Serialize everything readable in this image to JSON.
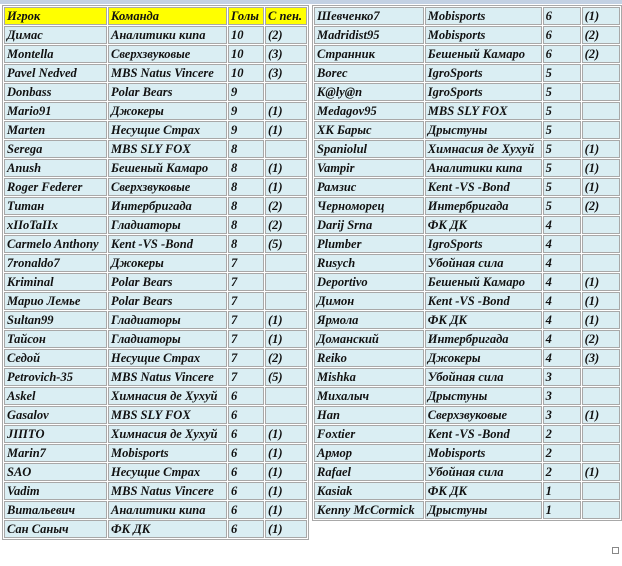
{
  "colors": {
    "header_bg": "#ffff00",
    "cell_bg": "#daeef3",
    "border": "#a8a8a8"
  },
  "left_table": {
    "headers": [
      "Игрок",
      "Команда",
      "Голы",
      "С пен."
    ],
    "rows": [
      [
        "Димас",
        "Аналитики кипа",
        "10",
        "(2)"
      ],
      [
        "Montella",
        "Сверхзвуковые",
        "10",
        "(3)"
      ],
      [
        "Pavel Nedved",
        "MBS Natus Vincere",
        "10",
        "(3)"
      ],
      [
        "Donbass",
        "Polar Bears",
        "9",
        ""
      ],
      [
        "Mario91",
        "Джокеры",
        "9",
        "(1)"
      ],
      [
        "Marten",
        "Несущие Страх",
        "9",
        "(1)"
      ],
      [
        "Serega",
        "MBS SLY FOX",
        "8",
        ""
      ],
      [
        "Anush",
        "Бешеный Камаро",
        "8",
        "(1)"
      ],
      [
        "Roger Federer",
        "Сверхзвуковые",
        "8",
        "(1)"
      ],
      [
        "Титан",
        "Интербригада",
        "8",
        "(2)"
      ],
      [
        "xIIoTaIIx",
        "Гладиаторы",
        "8",
        "(2)"
      ],
      [
        "Carmelo Anthony",
        "Kent -VS -Bond",
        "8",
        "(5)"
      ],
      [
        "7ronaldo7",
        "Джокеры",
        "7",
        ""
      ],
      [
        "Kriminal",
        "Polar Bears",
        "7",
        ""
      ],
      [
        "Марио Лемье",
        "Polar Bears",
        "7",
        ""
      ],
      [
        "Sultan99",
        "Гладиаторы",
        "7",
        "(1)"
      ],
      [
        "Тайсон",
        "Гладиаторы",
        "7",
        "(1)"
      ],
      [
        "Седой",
        "Несущие Страх",
        "7",
        "(2)"
      ],
      [
        "Petrovich-35",
        "MBS Natus Vincere",
        "7",
        "(5)"
      ],
      [
        "Askel",
        "Химнасия де Хухуй",
        "6",
        ""
      ],
      [
        "Gasalov",
        "MBS SLY FOX",
        "6",
        ""
      ],
      [
        "JIПТО",
        "Химнасия де Хухуй",
        "6",
        "(1)"
      ],
      [
        "Marin7",
        "Mobisports",
        "6",
        "(1)"
      ],
      [
        "SAO",
        "Несущие Страх",
        "6",
        "(1)"
      ],
      [
        "Vadim",
        "MBS Natus Vincere",
        "6",
        "(1)"
      ],
      [
        "Витальевич",
        "Аналитики кипа",
        "6",
        "(1)"
      ],
      [
        "Сан Саныч",
        "ФК ДК",
        "6",
        "(1)"
      ]
    ]
  },
  "right_table": {
    "rows": [
      [
        "Шевченко7",
        "Mobisports",
        "6",
        "(1)"
      ],
      [
        "Madridist95",
        "Mobisports",
        "6",
        "(2)"
      ],
      [
        "Странник",
        "Бешеный Камаро",
        "6",
        "(2)"
      ],
      [
        "Borec",
        "IgroSports",
        "5",
        ""
      ],
      [
        "K@ly@n",
        "IgroSports",
        "5",
        ""
      ],
      [
        "Medagov95",
        "MBS SLY FOX",
        "5",
        ""
      ],
      [
        "ХК Барыс",
        "Дрыстуны",
        "5",
        ""
      ],
      [
        "Spaniolul",
        "Химнасия де Хухуй",
        "5",
        "(1)"
      ],
      [
        "Vampir",
        "Аналитики кипа",
        "5",
        "(1)"
      ],
      [
        "Рамзис",
        "Kent -VS -Bond",
        "5",
        "(1)"
      ],
      [
        "Черноморец",
        "Интербригада",
        "5",
        "(2)"
      ],
      [
        "Darij Srna",
        "ФК ДК",
        "4",
        ""
      ],
      [
        "Plumber",
        "IgroSports",
        "4",
        ""
      ],
      [
        "Rusych",
        "Убойная сила",
        "4",
        ""
      ],
      [
        "Deportivo",
        "Бешеный Камаро",
        "4",
        "(1)"
      ],
      [
        "Димон",
        "Kent -VS -Bond",
        "4",
        "(1)"
      ],
      [
        "Ярмола",
        "ФК ДК",
        "4",
        "(1)"
      ],
      [
        "Доманский",
        "Интербригада",
        "4",
        "(2)"
      ],
      [
        "Reiko",
        "Джокеры",
        "4",
        "(3)"
      ],
      [
        "Mishka",
        "Убойная сила",
        "3",
        ""
      ],
      [
        "Михалыч",
        "Дрыстуны",
        "3",
        ""
      ],
      [
        "Han",
        "Сверхзвуковые",
        "3",
        "(1)"
      ],
      [
        "Foxtier",
        "Kent -VS -Bond",
        "2",
        ""
      ],
      [
        "Армор",
        "Mobisports",
        "2",
        ""
      ],
      [
        "Rafael",
        "Убойная сила",
        "2",
        "(1)"
      ],
      [
        "Kasiak",
        "ФК ДК",
        "1",
        ""
      ],
      [
        "Kenny McCormick",
        "Дрыстуны",
        "1",
        ""
      ]
    ]
  }
}
